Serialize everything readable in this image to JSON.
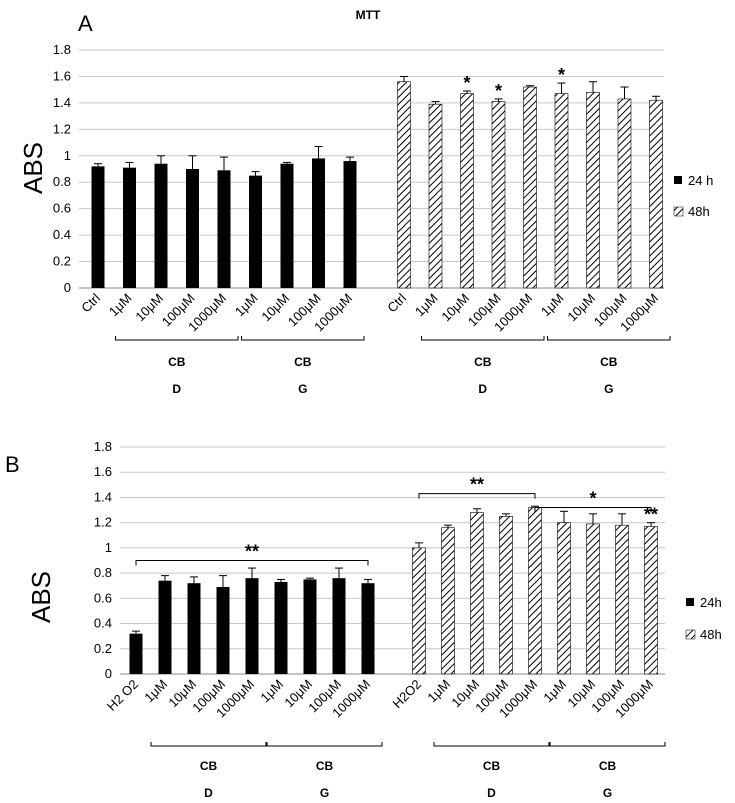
{
  "chart_data": [
    {
      "type": "bar",
      "panel_label": "A",
      "title": "MTT",
      "ylabel": "ABS",
      "ylim": [
        0,
        1.8
      ],
      "yticks": [
        "0",
        "0.2",
        "0.4",
        "0.6",
        "0.8",
        "1",
        "1.2",
        "1.4",
        "1.6",
        "1.8"
      ],
      "grid": true,
      "legend_position": "right",
      "series": [
        {
          "name": "24 h",
          "pattern": "solid",
          "color": "#000000",
          "categories": [
            "Ctrl",
            "1μM",
            "10μM",
            "100μM",
            "1000μM",
            "1μM",
            "10μM",
            "100μM",
            "1000μM"
          ],
          "values": [
            0.92,
            0.91,
            0.94,
            0.9,
            0.89,
            0.85,
            0.94,
            0.98,
            0.96
          ],
          "errors": [
            0.02,
            0.04,
            0.06,
            0.1,
            0.1,
            0.03,
            0.01,
            0.09,
            0.03
          ],
          "annotations": [
            "",
            "",
            "",
            "",
            "",
            "",
            "",
            "",
            ""
          ],
          "groups": [
            {
              "label": "CB",
              "sublabel": "D",
              "from": 1,
              "to": 4
            },
            {
              "label": "CB",
              "sublabel": "G",
              "from": 5,
              "to": 8
            }
          ]
        },
        {
          "name": "48h",
          "pattern": "hatch",
          "color": "#000000",
          "categories": [
            "Ctrl",
            "1μM",
            "10μM",
            "100μM",
            "1000μM",
            "1μM",
            "10μM",
            "100μM",
            "1000μM"
          ],
          "values": [
            1.56,
            1.39,
            1.47,
            1.41,
            1.52,
            1.47,
            1.48,
            1.43,
            1.42
          ],
          "errors": [
            0.04,
            0.02,
            0.02,
            0.02,
            0.01,
            0.08,
            0.08,
            0.09,
            0.03
          ],
          "annotations": [
            "",
            "",
            "*",
            "*",
            "",
            "*",
            "",
            "",
            ""
          ],
          "groups": [
            {
              "label": "CB",
              "sublabel": "D",
              "from": 1,
              "to": 4
            },
            {
              "label": "CB",
              "sublabel": "G",
              "from": 5,
              "to": 8
            }
          ]
        }
      ],
      "brackets": []
    },
    {
      "type": "bar",
      "panel_label": "B",
      "title": "",
      "ylabel": "ABS",
      "ylim": [
        0,
        1.8
      ],
      "yticks": [
        "0",
        "0.2",
        "0.4",
        "0.6",
        "0.8",
        "1",
        "1.2",
        "1.4",
        "1.6",
        "1.8"
      ],
      "grid": true,
      "legend_position": "right",
      "series": [
        {
          "name": "24h",
          "pattern": "solid",
          "color": "#000000",
          "categories": [
            "H2 O2",
            "1μM",
            "10μM",
            "100μM",
            "1000μM",
            "1μM",
            "10μM",
            "100μM",
            "1000μM"
          ],
          "values": [
            0.32,
            0.74,
            0.72,
            0.69,
            0.76,
            0.73,
            0.75,
            0.76,
            0.72
          ],
          "errors": [
            0.02,
            0.04,
            0.05,
            0.09,
            0.08,
            0.02,
            0.01,
            0.08,
            0.03
          ],
          "annotations": [
            "",
            "",
            "",
            "",
            "",
            "",
            "",
            "",
            ""
          ],
          "groups": [
            {
              "label": "CB",
              "sublabel": "D",
              "from": 1,
              "to": 4
            },
            {
              "label": "CB",
              "sublabel": "G",
              "from": 5,
              "to": 8
            }
          ]
        },
        {
          "name": "48h",
          "pattern": "hatch",
          "color": "#000000",
          "categories": [
            "H2O2",
            "1μM",
            "10μM",
            "100μM",
            "1000μM",
            "1μM",
            "10μM",
            "100μM",
            "1000μM"
          ],
          "values": [
            1.0,
            1.16,
            1.28,
            1.25,
            1.32,
            1.2,
            1.19,
            1.18,
            1.17
          ],
          "errors": [
            0.04,
            0.02,
            0.03,
            0.02,
            0.01,
            0.09,
            0.08,
            0.09,
            0.03
          ],
          "annotations": [
            "",
            "",
            "",
            "",
            "",
            "",
            "",
            "",
            "**"
          ],
          "groups": [
            {
              "label": "CB",
              "sublabel": "D",
              "from": 1,
              "to": 4
            },
            {
              "label": "CB",
              "sublabel": "G",
              "from": 5,
              "to": 8
            }
          ]
        }
      ],
      "brackets": [
        {
          "series": 0,
          "from": 0,
          "to": 8,
          "y": 0.9,
          "label": "**"
        },
        {
          "series": 1,
          "from": 0,
          "to": 4,
          "y": 1.43,
          "label": "**"
        },
        {
          "series": 1,
          "from": 4,
          "to": 8,
          "y": 1.32,
          "label": "*"
        }
      ]
    }
  ]
}
